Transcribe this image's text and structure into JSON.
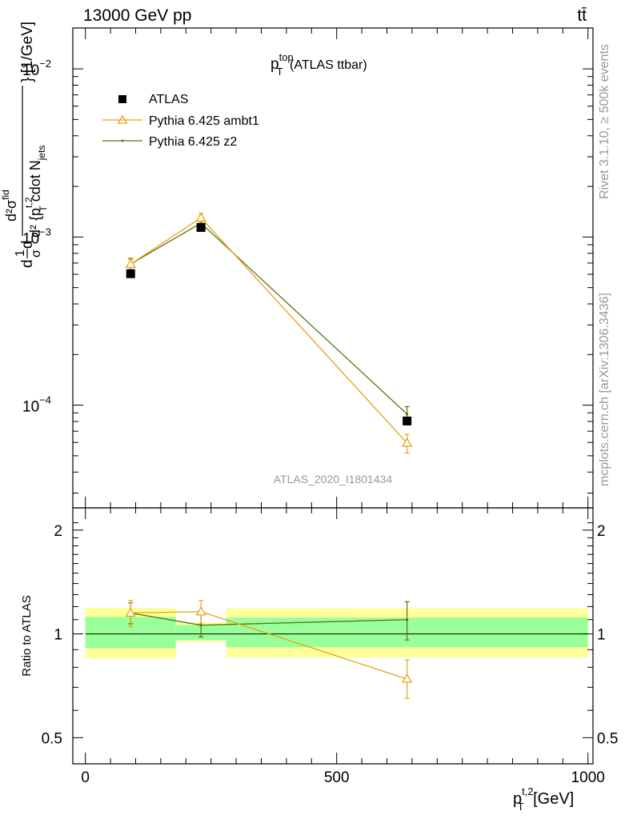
{
  "header": {
    "left": "13000 GeV pp",
    "right": "tt̄"
  },
  "side_labels": {
    "rivet": "Rivet 3.1.10, ≥ 500k events",
    "mcplots": "mcplots.cern.ch [arXiv:1306.3436]"
  },
  "watermark": "ATLAS_2020_I1801434",
  "colors": {
    "data": "#000000",
    "ambt1": "#e8a317",
    "z2": "#5a7316",
    "band_inner": "#99ff99",
    "band_outer": "#ffff99",
    "axis": "#000000"
  },
  "chart_data": [
    {
      "type": "line",
      "panel": "main",
      "title": {
        "main": "p",
        "sup": "top",
        "sub": "T",
        "suffix": " (ATLAS ttbar)"
      },
      "ylabel": "d1/σ d²σ^{fid} / d² {p_T^{t,2} cdot N_jets} [1/GeV]",
      "ylabel_parts": {
        "num_top": "d²σ",
        "num_sup": "fid",
        "den": "d² {p",
        "den_sup": "t,2",
        "den_sub": "T",
        "den_tail": " cdot N",
        "den_tail_sub": "jets",
        "units": "} [1/GeV]",
        "prefix_top": "1",
        "prefix_d": "d",
        "prefix_sigma": "σ"
      },
      "y_scale": "log",
      "ylim": [
        2.45e-05,
        0.0175
      ],
      "y_ticks": [
        {
          "value": 0.01,
          "base": "10",
          "exp": "−2"
        },
        {
          "value": 0.001,
          "base": "10",
          "exp": "−3"
        },
        {
          "value": 0.0001,
          "base": "10",
          "exp": "−4"
        }
      ],
      "xlim": [
        -25,
        1010
      ],
      "legend_placement": "top-left",
      "series": [
        {
          "name": "ATLAS",
          "style": "data",
          "points": [
            {
              "x": 90,
              "y": 0.000605,
              "xerr": [
                0,
                0
              ]
            },
            {
              "x": 230,
              "y": 0.00114,
              "xerr": [
                0,
                0
              ]
            },
            {
              "x": 640,
              "y": 8.05e-05,
              "xerr": [
                0,
                0
              ]
            }
          ]
        },
        {
          "name": "Pythia 6.425 ambt1",
          "style": "ambt1",
          "points": [
            {
              "x": 90,
              "y": 0.00069,
              "err": [
                6e-05,
                6e-05
              ]
            },
            {
              "x": 230,
              "y": 0.0013,
              "err": [
                8e-05,
                8e-05
              ]
            },
            {
              "x": 640,
              "y": 5.95e-05,
              "err": [
                7.5e-06,
                7.5e-06
              ]
            }
          ]
        },
        {
          "name": "Pythia 6.425 z2",
          "style": "z2",
          "points": [
            {
              "x": 90,
              "y": 0.00069,
              "err": [
                5e-05,
                5e-05
              ]
            },
            {
              "x": 230,
              "y": 0.00121,
              "err": [
                7e-05,
                7e-05
              ]
            },
            {
              "x": 640,
              "y": 8.85e-05,
              "err": [
                9.5e-06,
                9.5e-06
              ]
            }
          ]
        }
      ]
    },
    {
      "type": "line",
      "panel": "ratio",
      "ylabel": "Ratio to ATLAS",
      "y_scale": "log",
      "ylim": [
        0.42,
        2.32
      ],
      "y_ticks": [
        {
          "value": 0.5,
          "label": "0.5"
        },
        {
          "value": 1,
          "label": "1"
        },
        {
          "value": 2,
          "label": "2"
        }
      ],
      "xlim": [
        -25,
        1010
      ],
      "x_ticks": [
        {
          "value": 0,
          "label": "0"
        },
        {
          "value": 500,
          "label": "500"
        },
        {
          "value": 1000,
          "label": "1000"
        }
      ],
      "xlabel_parts": {
        "main": "p",
        "sup": "t,2",
        "sub": "T",
        "suffix": " [GeV]"
      },
      "bands": [
        {
          "x": [
            0,
            180
          ],
          "inner": [
            0.91,
            1.12
          ],
          "outer": [
            0.85,
            1.19
          ]
        },
        {
          "x": [
            180,
            280
          ],
          "inner": [
            0.96,
            1.06
          ],
          "outer": [
            0.95,
            1.08
          ]
        },
        {
          "x": [
            280,
            1000
          ],
          "inner": [
            0.915,
            1.115
          ],
          "outer": [
            0.855,
            1.185
          ]
        }
      ],
      "series": [
        {
          "name": "Pythia 6.425 ambt1",
          "style": "ambt1",
          "points": [
            {
              "x": 90,
              "y": 1.15,
              "err": [
                0.1,
                0.1
              ]
            },
            {
              "x": 230,
              "y": 1.16,
              "err": [
                0.09,
                0.09
              ]
            },
            {
              "x": 640,
              "y": 0.74,
              "err": [
                0.09,
                0.1
              ]
            }
          ]
        },
        {
          "name": "Pythia 6.425 z2",
          "style": "z2",
          "points": [
            {
              "x": 90,
              "y": 1.15,
              "err": [
                0.08,
                0.08
              ]
            },
            {
              "x": 230,
              "y": 1.06,
              "err": [
                0.08,
                0.08
              ]
            },
            {
              "x": 640,
              "y": 1.1,
              "err": [
                0.14,
                0.14
              ]
            }
          ]
        }
      ]
    }
  ]
}
